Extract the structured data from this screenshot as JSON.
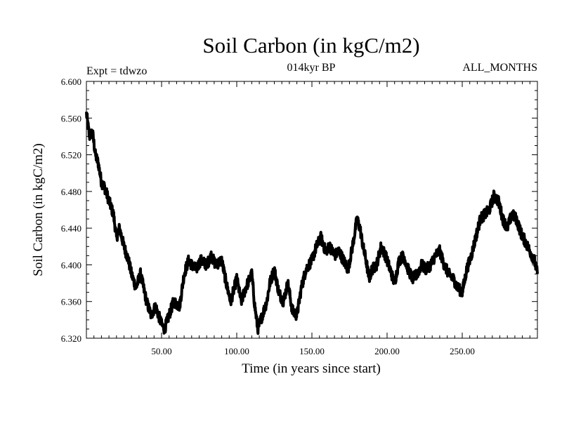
{
  "chart_data": {
    "type": "line",
    "title": "Soil Carbon (in kgC/m2)",
    "subtitle_left": "Expt = tdwzo",
    "subtitle_center": "014kyr BP",
    "subtitle_right": "ALL_MONTHS",
    "xlabel": "Time (in years since start)",
    "ylabel": "Soil Carbon (in kgC/m2)",
    "xlim": [
      0,
      300
    ],
    "ylim": [
      6.32,
      6.6
    ],
    "x_ticks": [
      50,
      100,
      150,
      200,
      250
    ],
    "x_tick_labels": [
      "50.00",
      "100.00",
      "150.00",
      "200.00",
      "250.00"
    ],
    "y_ticks": [
      6.32,
      6.36,
      6.4,
      6.44,
      6.48,
      6.52,
      6.56,
      6.6
    ],
    "y_tick_labels": [
      "6.320",
      "6.360",
      "6.400",
      "6.440",
      "6.480",
      "6.520",
      "6.560",
      "6.600"
    ],
    "grid": false,
    "legend": "none",
    "line_color": "#000000",
    "series": [
      {
        "x": [
          0,
          2,
          4,
          6,
          8,
          10,
          12,
          15,
          18,
          20,
          22,
          25,
          28,
          30,
          33,
          36,
          40,
          43,
          46,
          50,
          52,
          55,
          58,
          62,
          65,
          68,
          70,
          73,
          76,
          80,
          83,
          86,
          90,
          93,
          96,
          100,
          103,
          106,
          110,
          112,
          114,
          117,
          120,
          122,
          125,
          128,
          131,
          134,
          137,
          140,
          143,
          146,
          150,
          153,
          156,
          159,
          162,
          165,
          168,
          171,
          174,
          177,
          180,
          182,
          184,
          186,
          188,
          190,
          193,
          196,
          199,
          202,
          205,
          208,
          211,
          214,
          217,
          220,
          223,
          226,
          229,
          232,
          235,
          238,
          241,
          244,
          247,
          250,
          253,
          256,
          259,
          262,
          265,
          268,
          271,
          274,
          277,
          280,
          283,
          286,
          289,
          292,
          295,
          298,
          300
        ],
        "y": [
          6.565,
          6.54,
          6.545,
          6.52,
          6.51,
          6.49,
          6.485,
          6.47,
          6.455,
          6.43,
          6.44,
          6.42,
          6.405,
          6.39,
          6.375,
          6.39,
          6.36,
          6.345,
          6.355,
          6.335,
          6.33,
          6.345,
          6.36,
          6.355,
          6.39,
          6.405,
          6.4,
          6.395,
          6.405,
          6.4,
          6.41,
          6.4,
          6.405,
          6.38,
          6.36,
          6.385,
          6.36,
          6.375,
          6.39,
          6.355,
          6.33,
          6.345,
          6.36,
          6.38,
          6.395,
          6.37,
          6.36,
          6.38,
          6.35,
          6.345,
          6.375,
          6.395,
          6.405,
          6.42,
          6.43,
          6.415,
          6.42,
          6.41,
          6.415,
          6.405,
          6.395,
          6.42,
          6.45,
          6.44,
          6.42,
          6.405,
          6.385,
          6.395,
          6.4,
          6.42,
          6.41,
          6.395,
          6.38,
          6.405,
          6.41,
          6.395,
          6.385,
          6.39,
          6.4,
          6.395,
          6.4,
          6.41,
          6.415,
          6.4,
          6.39,
          6.385,
          6.375,
          6.37,
          6.395,
          6.41,
          6.43,
          6.45,
          6.455,
          6.46,
          6.475,
          6.47,
          6.45,
          6.44,
          6.455,
          6.45,
          6.435,
          6.425,
          6.415,
          6.405,
          6.39
        ]
      }
    ]
  }
}
